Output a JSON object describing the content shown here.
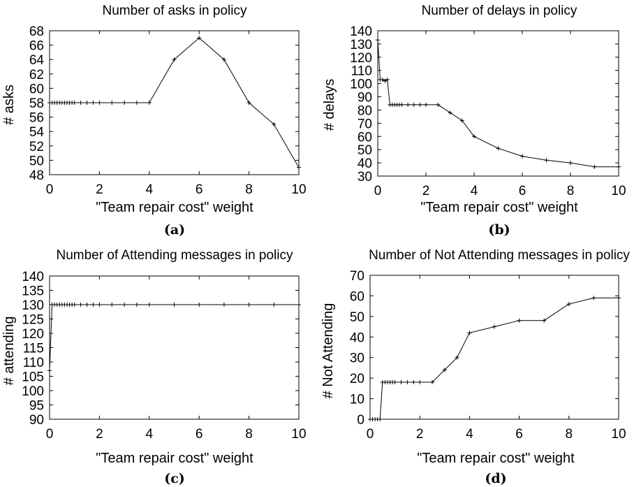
{
  "chart_data": [
    {
      "type": "line",
      "caption": "(a)",
      "title": "Number of asks in policy",
      "xlabel": "\"Team repair cost\" weight",
      "ylabel": "# asks",
      "xlim": [
        0,
        10
      ],
      "ylim": [
        48,
        68
      ],
      "xticks": [
        0,
        2,
        4,
        6,
        8,
        10
      ],
      "yticks": [
        48,
        50,
        52,
        54,
        56,
        58,
        60,
        62,
        64,
        66,
        68
      ],
      "series": [
        {
          "x": [
            0,
            0.1,
            0.2,
            0.3,
            0.4,
            0.5,
            0.6,
            0.7,
            0.8,
            0.9,
            1,
            1.25,
            1.5,
            1.75,
            2,
            2.5,
            3,
            3.5,
            4,
            5,
            6,
            7,
            8,
            9,
            10
          ],
          "y": [
            58,
            58,
            58,
            58,
            58,
            58,
            58,
            58,
            58,
            58,
            58,
            58,
            58,
            58,
            58,
            58,
            58,
            58,
            58,
            64,
            67,
            64,
            58,
            55,
            49
          ]
        }
      ]
    },
    {
      "type": "line",
      "caption": "(b)",
      "title": "Number of delays in policy",
      "xlabel": "\"Team repair cost\" weight",
      "ylabel": "# delays",
      "xlim": [
        0,
        10
      ],
      "ylim": [
        30,
        140
      ],
      "xticks": [
        0,
        2,
        4,
        6,
        8,
        10
      ],
      "yticks": [
        30,
        40,
        50,
        60,
        70,
        80,
        90,
        100,
        110,
        120,
        130,
        140
      ],
      "series": [
        {
          "x": [
            0,
            0.1,
            0.2,
            0.3,
            0.4,
            0.5,
            0.6,
            0.7,
            0.8,
            0.9,
            1,
            1.25,
            1.5,
            1.75,
            2,
            2.5,
            3,
            3.5,
            4,
            5,
            6,
            7,
            8,
            9,
            10
          ],
          "y": [
            133,
            103,
            103,
            102,
            103,
            84,
            84,
            84,
            84,
            84,
            84,
            84,
            84,
            84,
            84,
            84,
            78,
            72,
            60,
            51,
            45,
            42,
            40,
            37,
            37
          ]
        }
      ]
    },
    {
      "type": "line",
      "caption": "(c)",
      "title": "Number of Attending messages in policy",
      "xlabel": "\"Team repair cost\" weight",
      "ylabel": "# attending",
      "xlim": [
        0,
        10
      ],
      "ylim": [
        90,
        140
      ],
      "xticks": [
        0,
        2,
        4,
        6,
        8,
        10
      ],
      "yticks": [
        90,
        95,
        100,
        105,
        110,
        115,
        120,
        125,
        130,
        135,
        140
      ],
      "series": [
        {
          "x": [
            0,
            0.1,
            0.2,
            0.3,
            0.4,
            0.5,
            0.6,
            0.7,
            0.8,
            0.9,
            1,
            1.25,
            1.5,
            1.75,
            2,
            2.5,
            3,
            3.5,
            4,
            5,
            6,
            7,
            8,
            9,
            10
          ],
          "y": [
            107,
            130,
            130,
            130,
            130,
            130,
            130,
            130,
            130,
            130,
            130,
            130,
            130,
            130,
            130,
            130,
            130,
            130,
            130,
            130,
            130,
            130,
            130,
            130,
            130
          ]
        }
      ]
    },
    {
      "type": "line",
      "caption": "(d)",
      "title": "Number of Not Attending messages in policy",
      "xlabel": "\"Team repair cost\" weight",
      "ylabel": "# Not Attending",
      "xlim": [
        0,
        10
      ],
      "ylim": [
        0,
        70
      ],
      "xticks": [
        0,
        2,
        4,
        6,
        8,
        10
      ],
      "yticks": [
        0,
        10,
        20,
        30,
        40,
        50,
        60,
        70
      ],
      "series": [
        {
          "x": [
            0,
            0.1,
            0.2,
            0.3,
            0.4,
            0.5,
            0.6,
            0.7,
            0.8,
            0.9,
            1,
            1.25,
            1.5,
            1.75,
            2,
            2.5,
            3,
            3.5,
            4,
            5,
            6,
            7,
            8,
            9,
            10
          ],
          "y": [
            0,
            0,
            0,
            0,
            0,
            18,
            18,
            18,
            18,
            18,
            18,
            18,
            18,
            18,
            18,
            18,
            24,
            30,
            42,
            45,
            48,
            48,
            56,
            59,
            59
          ]
        }
      ]
    }
  ]
}
